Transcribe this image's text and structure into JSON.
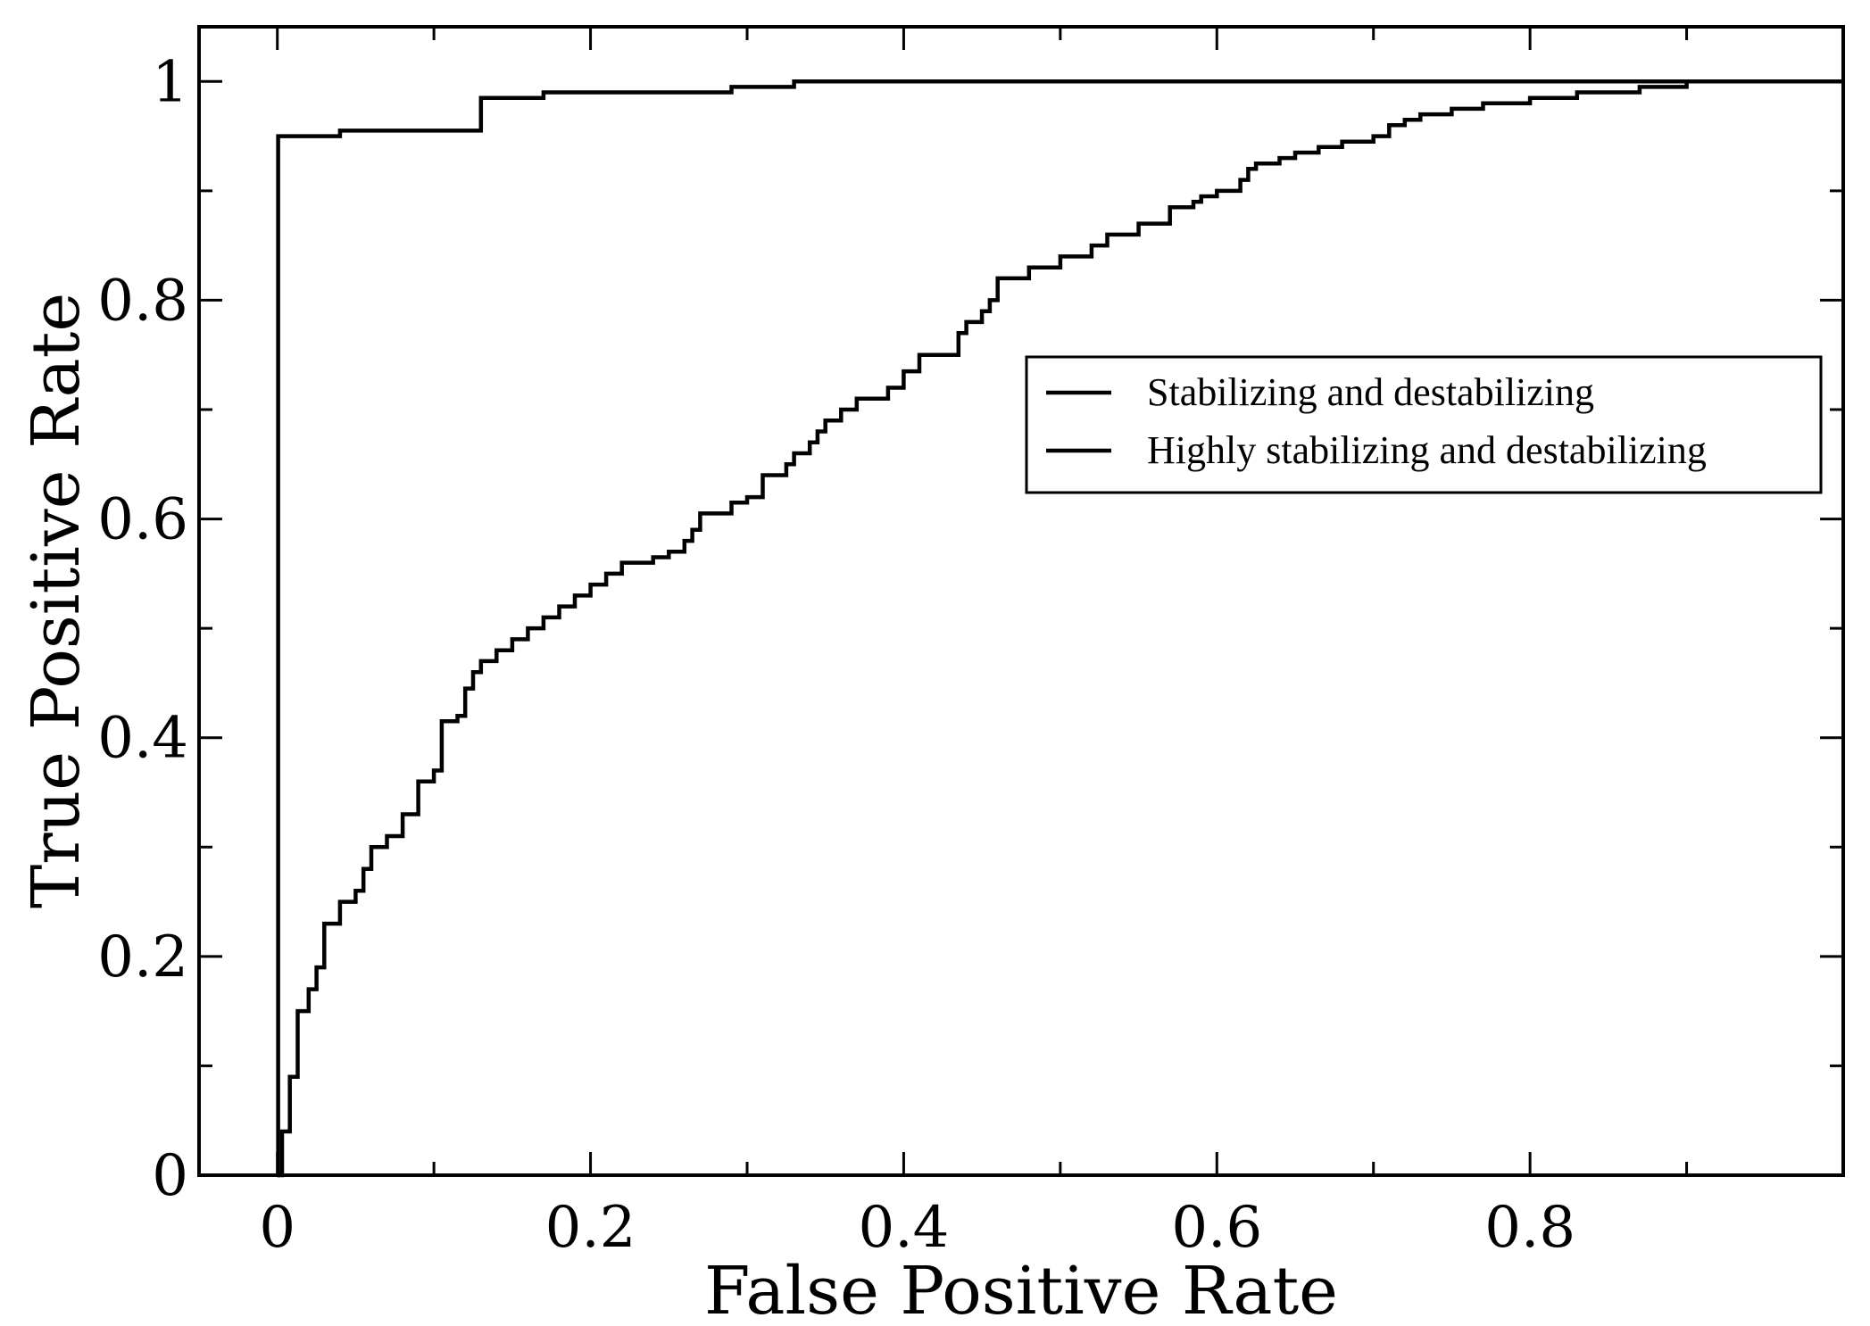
{
  "chart_data": {
    "type": "line",
    "title": "",
    "xlabel": "False Positive Rate",
    "ylabel": "True Positive Rate",
    "xlim": [
      -0.05,
      1.0
    ],
    "ylim": [
      0,
      1.05
    ],
    "xticks": [
      0,
      0.2,
      0.4,
      0.6,
      0.8
    ],
    "xtick_labels": [
      "0",
      "0.2",
      "0.4",
      "0.6",
      "0.8"
    ],
    "xminor": [
      0.1,
      0.3,
      0.5,
      0.7,
      0.9
    ],
    "yticks": [
      0,
      0.2,
      0.4,
      0.6,
      0.8,
      1.0
    ],
    "ytick_labels": [
      "0",
      "0.2",
      "0.4",
      "0.6",
      "0.8",
      "1"
    ],
    "yminor": [
      0.1,
      0.3,
      0.5,
      0.7,
      0.9
    ],
    "grid": false,
    "legend_position": "right-middle",
    "step": true,
    "series": [
      {
        "name": "Stabilizing and destabilizing",
        "color": "#000000",
        "x": [
          0,
          0.003,
          0.008,
          0.013,
          0.02,
          0.025,
          0.03,
          0.04,
          0.05,
          0.055,
          0.06,
          0.07,
          0.08,
          0.09,
          0.1,
          0.105,
          0.115,
          0.12,
          0.125,
          0.13,
          0.14,
          0.15,
          0.16,
          0.17,
          0.18,
          0.19,
          0.2,
          0.21,
          0.22,
          0.24,
          0.25,
          0.26,
          0.265,
          0.27,
          0.29,
          0.3,
          0.31,
          0.325,
          0.33,
          0.34,
          0.345,
          0.35,
          0.36,
          0.37,
          0.39,
          0.4,
          0.41,
          0.435,
          0.44,
          0.45,
          0.455,
          0.46,
          0.48,
          0.5,
          0.52,
          0.53,
          0.55,
          0.57,
          0.585,
          0.59,
          0.6,
          0.615,
          0.62,
          0.625,
          0.64,
          0.65,
          0.665,
          0.68,
          0.7,
          0.71,
          0.72,
          0.73,
          0.75,
          0.77,
          0.8,
          0.83,
          0.87,
          0.9,
          0.95,
          1.0
        ],
        "y": [
          0,
          0.04,
          0.09,
          0.15,
          0.17,
          0.19,
          0.23,
          0.25,
          0.26,
          0.28,
          0.3,
          0.31,
          0.33,
          0.36,
          0.37,
          0.415,
          0.42,
          0.445,
          0.46,
          0.47,
          0.48,
          0.49,
          0.5,
          0.51,
          0.52,
          0.53,
          0.54,
          0.55,
          0.56,
          0.565,
          0.57,
          0.58,
          0.59,
          0.605,
          0.615,
          0.62,
          0.64,
          0.65,
          0.66,
          0.67,
          0.68,
          0.69,
          0.7,
          0.71,
          0.72,
          0.735,
          0.75,
          0.77,
          0.78,
          0.79,
          0.8,
          0.82,
          0.83,
          0.84,
          0.85,
          0.86,
          0.87,
          0.885,
          0.89,
          0.895,
          0.9,
          0.91,
          0.92,
          0.925,
          0.93,
          0.935,
          0.94,
          0.945,
          0.95,
          0.96,
          0.965,
          0.97,
          0.975,
          0.98,
          0.985,
          0.99,
          0.995,
          1.0,
          1.0,
          1.0
        ]
      },
      {
        "name": "Highly stabilizing and destabilizing",
        "color": "#000000",
        "x": [
          0,
          0.0005,
          0.04,
          0.125,
          0.13,
          0.17,
          0.29,
          0.33,
          1.0
        ],
        "y": [
          0,
          0.95,
          0.955,
          0.955,
          0.985,
          0.99,
          0.995,
          1.0,
          1.0
        ]
      }
    ]
  }
}
